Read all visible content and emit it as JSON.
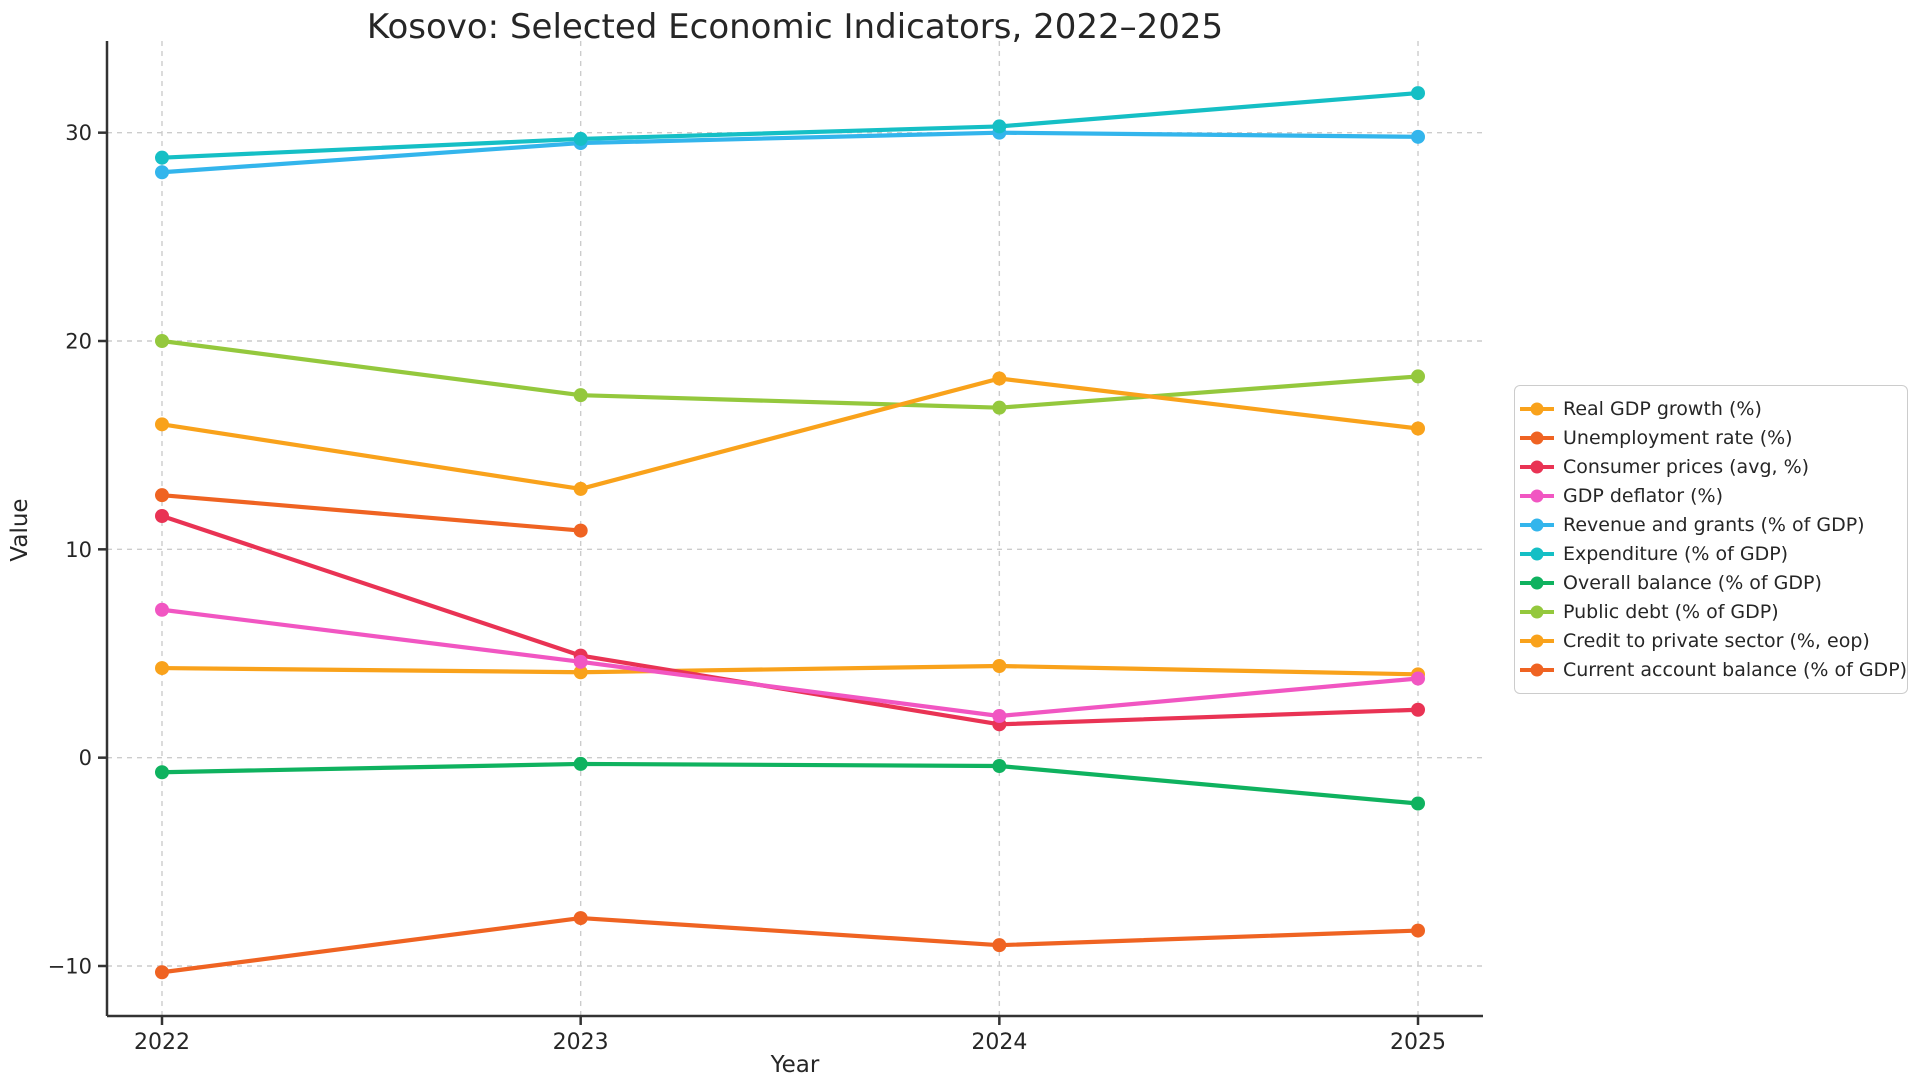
{
  "chart_data": {
    "type": "line",
    "title": "Kosovo: Selected Economic Indicators, 2022–2025",
    "xlabel": "Year",
    "ylabel": "Value",
    "x": [
      2022,
      2023,
      2024,
      2025
    ],
    "xticklabels": [
      "2022",
      "2023",
      "2024",
      "2025"
    ],
    "yticks": [
      -10,
      0,
      10,
      20,
      30
    ],
    "yticklabels": [
      "−10",
      "0",
      "10",
      "20",
      "30"
    ],
    "ylim": [
      -12.4,
      34.4
    ],
    "grid": true,
    "grid_color": "#cccccc",
    "spine_color": "#333333",
    "text_color": "#262626",
    "legend_position": "center-right-outside",
    "marker": "circle",
    "series": [
      {
        "name": "Real GDP growth (%)",
        "color": "#F9A21B",
        "values": [
          4.3,
          4.1,
          4.4,
          4.0
        ]
      },
      {
        "name": "Unemployment rate (%)",
        "color": "#EF6322",
        "values": [
          12.6,
          10.9,
          null,
          null
        ]
      },
      {
        "name": "Consumer prices (avg, %)",
        "color": "#E93354",
        "values": [
          11.6,
          4.9,
          1.6,
          2.3
        ]
      },
      {
        "name": "GDP deflator (%)",
        "color": "#F156C2",
        "values": [
          7.1,
          4.6,
          2.0,
          3.8
        ]
      },
      {
        "name": "Revenue and grants (% of GDP)",
        "color": "#33B5EC",
        "values": [
          28.1,
          29.5,
          30.0,
          29.8
        ]
      },
      {
        "name": "Expenditure (% of GDP)",
        "color": "#15BFC5",
        "values": [
          28.8,
          29.7,
          30.3,
          31.9
        ]
      },
      {
        "name": "Overall balance (% of GDP)",
        "color": "#0FB25F",
        "values": [
          -0.7,
          -0.3,
          -0.4,
          -2.2
        ]
      },
      {
        "name": "Public debt (% of GDP)",
        "color": "#94C83D",
        "values": [
          20.0,
          17.4,
          16.8,
          18.3
        ]
      },
      {
        "name": "Credit to private sector (%, eop)",
        "color": "#F9A21B",
        "values": [
          16.0,
          12.9,
          18.2,
          15.8
        ]
      },
      {
        "name": "Current account balance (% of GDP)",
        "color": "#EF6322",
        "values": [
          -10.3,
          -7.7,
          -9.0,
          -8.3
        ]
      }
    ]
  }
}
